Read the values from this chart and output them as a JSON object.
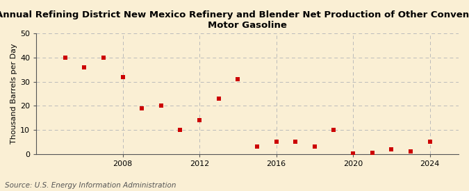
{
  "title_line1": "Annual Refining District New Mexico Refinery and Blender Net Production of Other Conventional",
  "title_line2": "Motor Gasoline",
  "ylabel": "Thousand Barrels per Day",
  "source": "Source: U.S. Energy Information Administration",
  "background_color": "#faefd4",
  "grid_color": "#bbbbbb",
  "marker_color": "#cc0000",
  "spine_color": "#555555",
  "years": [
    2005,
    2006,
    2007,
    2008,
    2009,
    2010,
    2011,
    2012,
    2013,
    2014,
    2015,
    2016,
    2017,
    2018,
    2019,
    2020,
    2021,
    2022,
    2023,
    2024
  ],
  "values": [
    40,
    36,
    40,
    32,
    19,
    20,
    10,
    14,
    23,
    31,
    3,
    5,
    5,
    3,
    10,
    0.3,
    0.5,
    2,
    1,
    5
  ],
  "ylim": [
    0,
    50
  ],
  "yticks": [
    0,
    10,
    20,
    30,
    40,
    50
  ],
  "xticks": [
    2008,
    2012,
    2016,
    2020,
    2024
  ],
  "xlim": [
    2003.5,
    2025.5
  ],
  "title_fontsize": 9.5,
  "axis_fontsize": 8,
  "ylabel_fontsize": 8,
  "source_fontsize": 7.5
}
